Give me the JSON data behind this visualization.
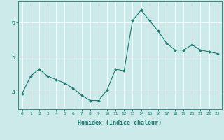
{
  "title": "",
  "xlabel": "Humidex (Indice chaleur)",
  "ylabel": "",
  "x": [
    0,
    1,
    2,
    3,
    4,
    5,
    6,
    7,
    8,
    9,
    10,
    11,
    12,
    13,
    14,
    15,
    16,
    17,
    18,
    19,
    20,
    21,
    22,
    23
  ],
  "y": [
    3.95,
    4.45,
    4.65,
    4.45,
    4.35,
    4.25,
    4.1,
    3.9,
    3.75,
    3.75,
    4.05,
    4.65,
    4.6,
    6.05,
    6.35,
    6.05,
    5.75,
    5.4,
    5.2,
    5.2,
    5.35,
    5.2,
    5.15,
    5.1
  ],
  "line_color": "#1a7a6e",
  "marker": "D",
  "marker_size": 1.8,
  "bg_color": "#cceaea",
  "grid_color": "#ffffff",
  "tick_color": "#1a7a6e",
  "label_color": "#1a7a6e",
  "ylim": [
    3.5,
    6.6
  ],
  "yticks": [
    4,
    5,
    6
  ],
  "xlim": [
    -0.5,
    23.5
  ]
}
